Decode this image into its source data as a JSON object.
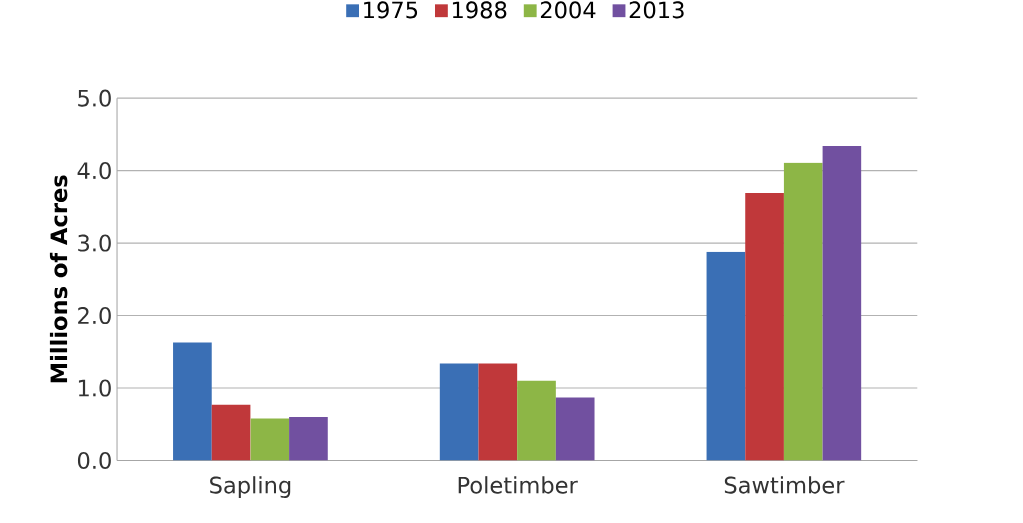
{
  "chart_data": {
    "type": "bar",
    "ylabel": "Millions of Acres",
    "categories": [
      "Sapling",
      "Poletimber",
      "Sawtimber"
    ],
    "series": [
      {
        "name": "1975",
        "color": "#3a6fb5",
        "values": [
          1.63,
          1.34,
          2.88
        ]
      },
      {
        "name": "1988",
        "color": "#c0383a",
        "values": [
          0.77,
          1.34,
          3.69
        ]
      },
      {
        "name": "2004",
        "color": "#8db646",
        "values": [
          0.58,
          1.1,
          4.11
        ]
      },
      {
        "name": "2013",
        "color": "#7150a0",
        "values": [
          0.6,
          0.87,
          4.34
        ]
      }
    ],
    "ylim": [
      0,
      5
    ],
    "yticks": [
      {
        "value": 0,
        "label": "0.0"
      },
      {
        "value": 1,
        "label": "1.0"
      },
      {
        "value": 2,
        "label": "2.0"
      },
      {
        "value": 3,
        "label": "3.0"
      },
      {
        "value": 4,
        "label": "4.0"
      },
      {
        "value": 5,
        "label": "5.0"
      }
    ],
    "grid": "y",
    "legend": "top"
  }
}
